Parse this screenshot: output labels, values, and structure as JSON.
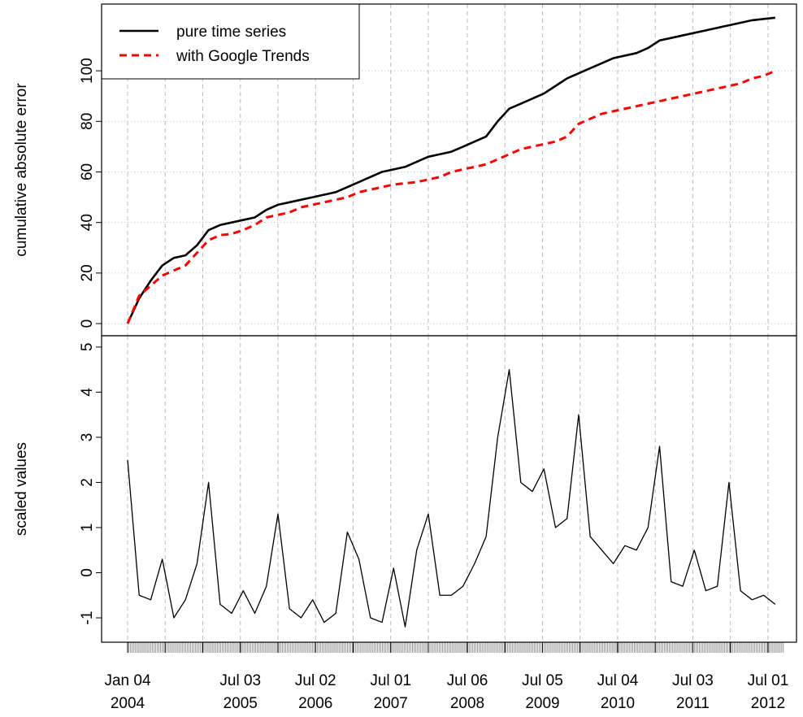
{
  "chart_data": {
    "type": "line",
    "x": [
      "2004-01-04",
      "2004-02-29",
      "2004-04-25",
      "2004-06-20",
      "2004-08-15",
      "2004-10-10",
      "2004-12-05",
      "2005-01-30",
      "2005-03-27",
      "2005-05-22",
      "2005-07-17",
      "2005-09-11",
      "2005-11-06",
      "2006-01-01",
      "2006-02-26",
      "2006-04-23",
      "2006-06-18",
      "2006-08-13",
      "2006-10-08",
      "2006-12-03",
      "2007-01-28",
      "2007-03-25",
      "2007-05-20",
      "2007-07-15",
      "2007-09-09",
      "2007-11-04",
      "2007-12-30",
      "2008-02-24",
      "2008-04-20",
      "2008-06-15",
      "2008-08-10",
      "2008-10-05",
      "2008-11-30",
      "2009-01-25",
      "2009-03-22",
      "2009-05-17",
      "2009-07-12",
      "2009-09-06",
      "2009-11-01",
      "2009-12-27",
      "2010-02-21",
      "2010-04-18",
      "2010-06-13",
      "2010-08-08",
      "2010-10-03",
      "2010-11-28",
      "2011-01-23",
      "2011-03-20",
      "2011-05-15",
      "2011-07-10",
      "2011-09-04",
      "2011-10-30",
      "2011-12-25",
      "2012-02-19",
      "2012-04-15",
      "2012-06-10",
      "2012-08-05"
    ],
    "xlim": [
      "2003-08-31",
      "2012-11-16"
    ],
    "xticks": [
      {
        "value": "2004-01-04",
        "label": [
          "Jan 04",
          "2004"
        ]
      },
      {
        "value": "2004-07-04",
        "label": null
      },
      {
        "value": "2005-01-02",
        "label": null
      },
      {
        "value": "2005-07-03",
        "label": [
          "Jul 03",
          "2005"
        ]
      },
      {
        "value": "2006-01-01",
        "label": null
      },
      {
        "value": "2006-07-02",
        "label": [
          "Jul 02",
          "2006"
        ]
      },
      {
        "value": "2006-12-31",
        "label": null
      },
      {
        "value": "2007-07-01",
        "label": [
          "Jul 01",
          "2007"
        ]
      },
      {
        "value": "2007-12-30",
        "label": null
      },
      {
        "value": "2008-07-06",
        "label": [
          "Jul 06",
          "2008"
        ]
      },
      {
        "value": "2009-01-04",
        "label": null
      },
      {
        "value": "2009-07-05",
        "label": [
          "Jul 05",
          "2009"
        ]
      },
      {
        "value": "2010-01-03",
        "label": null
      },
      {
        "value": "2010-07-04",
        "label": [
          "Jul 04",
          "2010"
        ]
      },
      {
        "value": "2011-01-02",
        "label": null
      },
      {
        "value": "2011-07-03",
        "label": [
          "Jul 03",
          "2011"
        ]
      },
      {
        "value": "2012-01-01",
        "label": null
      },
      {
        "value": "2012-07-01",
        "label": [
          "Jul 01",
          "2012"
        ]
      }
    ],
    "grid": true,
    "panels": [
      {
        "ylabel": "cumulative absolute error",
        "ylim": [
          -4.8,
          126.4
        ],
        "yticks": [
          0,
          20,
          40,
          60,
          80,
          100
        ],
        "legend": "top-left",
        "series": [
          {
            "name": "pure time series",
            "color": "#000000",
            "dash": false,
            "values": [
              0,
              10,
              17,
              23,
              26,
              27,
              31,
              37,
              39,
              40,
              41,
              42,
              45,
              47,
              48,
              49,
              50,
              51,
              52,
              54,
              56,
              58,
              60,
              61,
              62,
              64,
              66,
              67,
              68,
              70,
              72,
              74,
              80,
              85,
              87,
              89,
              91,
              94,
              97,
              99,
              101,
              103,
              105,
              106,
              107,
              109,
              112,
              113,
              114,
              115,
              116,
              117,
              118,
              119,
              120,
              120.5,
              121
            ]
          },
          {
            "name": "with Google Trends",
            "color": "#ff0000",
            "dash": true,
            "values": [
              0,
              11,
              15,
              19,
              21,
              23,
              28,
              33,
              35,
              35.5,
              37,
              39,
              42,
              43,
              44,
              46,
              47,
              48,
              49,
              50,
              52,
              53,
              54,
              55,
              55.5,
              56,
              57,
              58,
              60,
              61,
              62,
              63,
              65,
              67,
              69,
              70,
              71,
              72,
              74,
              79,
              81,
              83,
              84,
              85,
              86,
              87,
              88,
              89,
              90,
              91,
              92,
              93,
              94,
              95,
              97,
              98,
              100
            ]
          }
        ]
      },
      {
        "ylabel": "scaled values",
        "ylim": [
          -1.54,
          5.25
        ],
        "yticks": [
          -1,
          0,
          1,
          2,
          3,
          4,
          5
        ],
        "series": [
          {
            "color": "#000000",
            "dash": false,
            "values": [
              2.5,
              -0.5,
              -0.6,
              0.3,
              -1.0,
              -0.6,
              0.2,
              2.0,
              -0.7,
              -0.9,
              -0.4,
              -0.9,
              -0.3,
              1.3,
              -0.8,
              -1.0,
              -0.6,
              -1.1,
              -0.9,
              0.9,
              0.3,
              -1.0,
              -1.1,
              0.1,
              -1.2,
              0.5,
              1.3,
              -0.5,
              -0.5,
              -0.3,
              0.2,
              0.8,
              3.0,
              4.5,
              2.0,
              1.8,
              2.3,
              1.0,
              1.2,
              3.5,
              0.8,
              0.5,
              0.2,
              0.6,
              0.5,
              1.0,
              2.8,
              -0.2,
              -0.3,
              0.5,
              -0.4,
              -0.3,
              2.0,
              -0.4,
              -0.6,
              -0.5,
              -0.7
            ]
          }
        ]
      }
    ]
  }
}
